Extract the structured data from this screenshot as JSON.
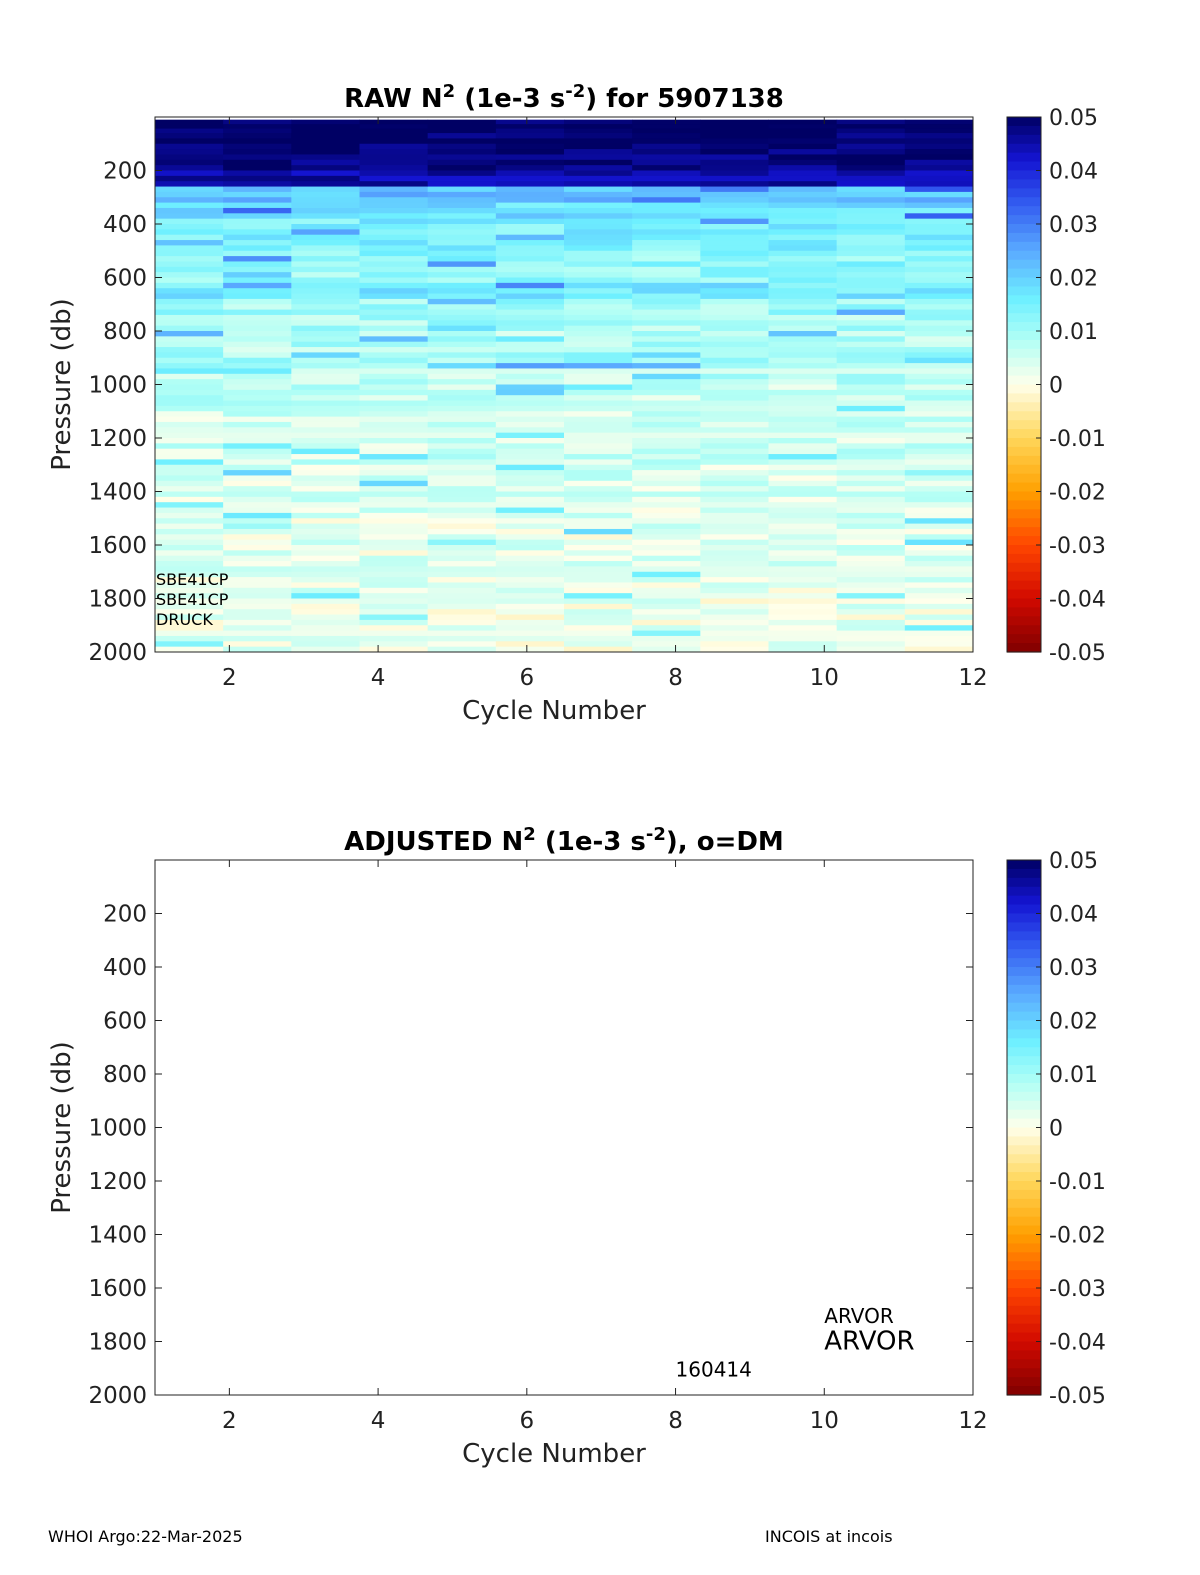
{
  "chart_data": [
    {
      "type": "heatmap",
      "title_parts": {
        "pre": "RAW N",
        "exp1": "2",
        "mid": " (1e-3 s",
        "exp2": "-2",
        "post": ") for 5907138"
      },
      "xlabel": "Cycle Number",
      "ylabel": "Pressure (db)",
      "xlim": [
        1,
        12
      ],
      "ylim": [
        0,
        2000
      ],
      "y_reversed": true,
      "xticks": [
        2,
        4,
        6,
        8,
        10,
        12
      ],
      "yticks": [
        200,
        400,
        600,
        800,
        1000,
        1200,
        1400,
        1600,
        1800,
        2000
      ],
      "colorbar": {
        "min": -0.05,
        "max": 0.05,
        "ticks": [
          0.05,
          0.04,
          0.03,
          0.02,
          0.01,
          0,
          -0.01,
          -0.02,
          -0.03,
          -0.04,
          -0.05
        ],
        "tick_labels": [
          "0.05",
          "0.04",
          "0.03",
          "0.02",
          "0.01",
          "0",
          "-0.01",
          "-0.02",
          "-0.03",
          "-0.04",
          "-0.05"
        ],
        "colormap": "jet-like diverging (dark red to yellow to cyan to dark blue)"
      },
      "annotations": [
        "SBE41CP",
        "SBE41CP",
        "DRUCK"
      ],
      "cycles": [
        1,
        2,
        3,
        4,
        5,
        6,
        7,
        8,
        9,
        10,
        11,
        12
      ],
      "profile_levels_db": [
        [
          60,
          0.05
        ],
        [
          120,
          0.049
        ],
        [
          200,
          0.048
        ],
        [
          260,
          0.045
        ],
        [
          320,
          0.022
        ],
        [
          380,
          0.018
        ],
        [
          440,
          0.015
        ],
        [
          500,
          0.014
        ],
        [
          560,
          0.012
        ],
        [
          620,
          0.011
        ],
        [
          680,
          0.016
        ],
        [
          740,
          0.01
        ],
        [
          800,
          0.009
        ],
        [
          880,
          0.008
        ],
        [
          940,
          0.01
        ],
        [
          1000,
          0.007
        ],
        [
          1100,
          0.006
        ],
        [
          1200,
          0.005
        ],
        [
          1300,
          0.005
        ],
        [
          1400,
          0.004
        ],
        [
          1500,
          0.004
        ],
        [
          1600,
          0.003
        ],
        [
          1700,
          0.003
        ],
        [
          1800,
          0.003
        ],
        [
          1900,
          0.002
        ],
        [
          2000,
          0.002
        ]
      ]
    },
    {
      "type": "heatmap",
      "title_parts": {
        "pre": "ADJUSTED N",
        "exp1": "2",
        "mid": " (1e-3 s",
        "exp2": "-2",
        "post": "), o=DM"
      },
      "xlabel": "Cycle Number",
      "ylabel": "Pressure (db)",
      "xlim": [
        1,
        12
      ],
      "ylim": [
        0,
        2000
      ],
      "y_reversed": true,
      "xticks": [
        2,
        4,
        6,
        8,
        10,
        12
      ],
      "yticks": [
        200,
        400,
        600,
        800,
        1000,
        1200,
        1400,
        1600,
        1800,
        2000
      ],
      "colorbar": {
        "min": -0.05,
        "max": 0.05,
        "ticks": [
          0.05,
          0.04,
          0.03,
          0.02,
          0.01,
          0,
          -0.01,
          -0.02,
          -0.03,
          -0.04,
          -0.05
        ],
        "tick_labels": [
          "0.05",
          "0.04",
          "0.03",
          "0.02",
          "0.01",
          "0",
          "-0.01",
          "-0.02",
          "-0.03",
          "-0.04",
          "-0.05"
        ]
      },
      "values": [],
      "annotations": {
        "small": "ARVOR",
        "large": "ARVOR",
        "date": "160414"
      }
    }
  ],
  "footer": {
    "left": "WHOI Argo:22-Mar-2025",
    "right": "INCOIS at incois"
  }
}
